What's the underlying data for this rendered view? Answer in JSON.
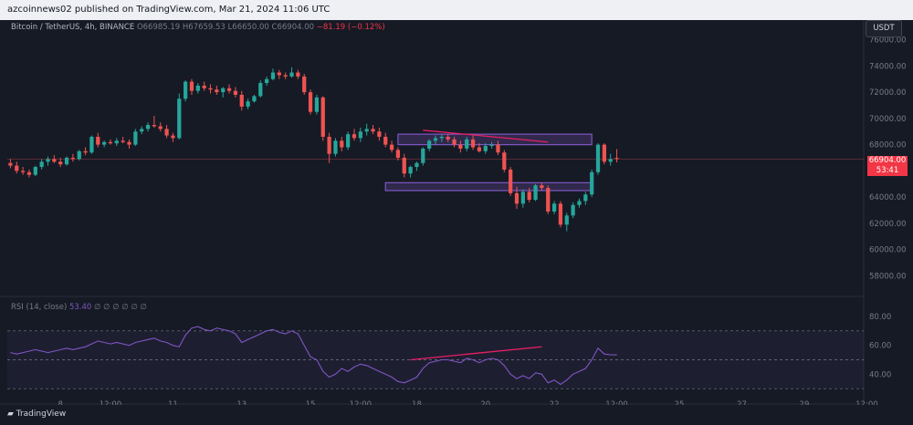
{
  "header": {
    "publish_text": "azcoinnews02 published on TradingView.com, Mar 21, 2024 11:06 UTC"
  },
  "legend": {
    "symbol": "Bitcoin / TetherUS, 4h, BINANCE",
    "open": "O66985.19",
    "high": "H67659.53",
    "low": "L66650.00",
    "close": "C66904.00",
    "change": "−81.19 (−0.12%)"
  },
  "rsi_legend": {
    "label": "RSI (14, close)",
    "value": "53.40",
    "extra": "∅ ∅ ∅ ∅ ∅ ∅"
  },
  "currency": "USDT",
  "price_tag": {
    "price": "66904.00",
    "countdown": "53:41"
  },
  "footer": {
    "logo_text": "TradingView"
  },
  "colors": {
    "up": "#26a69a",
    "down": "#ef5350",
    "zone": "#7e57c2",
    "divergence": "#e91e63",
    "rsi": "#7e57c2",
    "background": "#161a25"
  },
  "chart_data": [
    {
      "type": "candlestick",
      "title": "Bitcoin / TetherUS, 4h, BINANCE",
      "y_ticks": [
        "76000.00",
        "74000.00",
        "72000.00",
        "70000.00",
        "68000.00",
        "66000.00",
        "64000.00",
        "62000.00",
        "60000.00",
        "58000.00"
      ],
      "ylim": [
        56500,
        77500
      ],
      "x_ticks": [
        "8",
        "12:00",
        "11",
        "13",
        "15",
        "12:00",
        "18",
        "20",
        "22",
        "12:00",
        "25",
        "27",
        "29",
        "12:00"
      ],
      "x_tick_bar_index": [
        8,
        16,
        26,
        37,
        48,
        56,
        65,
        76,
        87,
        97,
        107,
        117,
        127,
        137
      ],
      "bar_count": 137,
      "candles_ohlc": [
        [
          66600,
          66900,
          66200,
          66400
        ],
        [
          66400,
          66700,
          65800,
          66000
        ],
        [
          66000,
          66300,
          65700,
          65900
        ],
        [
          65900,
          66100,
          65500,
          65700
        ],
        [
          65700,
          66400,
          65600,
          66300
        ],
        [
          66300,
          66900,
          66100,
          66700
        ],
        [
          66700,
          67100,
          66400,
          66900
        ],
        [
          66900,
          67200,
          66600,
          66700
        ],
        [
          66700,
          67000,
          66300,
          66500
        ],
        [
          66500,
          67100,
          66400,
          67000
        ],
        [
          67000,
          67300,
          66700,
          66900
        ],
        [
          66900,
          67600,
          66800,
          67500
        ],
        [
          67500,
          67800,
          67200,
          67400
        ],
        [
          67400,
          68700,
          67300,
          68600
        ],
        [
          68600,
          68900,
          67800,
          68000
        ],
        [
          68000,
          68300,
          67800,
          68200
        ],
        [
          68200,
          68400,
          68000,
          68100
        ],
        [
          68100,
          68500,
          67900,
          68300
        ],
        [
          68300,
          68600,
          68100,
          68200
        ],
        [
          68200,
          68400,
          67700,
          68000
        ],
        [
          68000,
          69200,
          67900,
          69000
        ],
        [
          69000,
          69400,
          68800,
          69200
        ],
        [
          69200,
          69700,
          69000,
          69500
        ],
        [
          69500,
          70200,
          69300,
          69400
        ],
        [
          69400,
          69700,
          69000,
          69200
        ],
        [
          69200,
          69500,
          68500,
          68700
        ],
        [
          68700,
          68900,
          68200,
          68500
        ],
        [
          68500,
          71900,
          68400,
          71500
        ],
        [
          71500,
          72900,
          71300,
          72800
        ],
        [
          72800,
          73000,
          71800,
          72100
        ],
        [
          72100,
          72700,
          71900,
          72500
        ],
        [
          72500,
          72800,
          72100,
          72300
        ],
        [
          72300,
          72600,
          71900,
          72200
        ],
        [
          72200,
          72500,
          71800,
          72000
        ],
        [
          72000,
          72400,
          71600,
          72300
        ],
        [
          72300,
          72600,
          71900,
          72100
        ],
        [
          72100,
          72400,
          71600,
          71800
        ],
        [
          71800,
          72100,
          70600,
          70900
        ],
        [
          70900,
          71500,
          70700,
          71300
        ],
        [
          71300,
          71800,
          71200,
          71700
        ],
        [
          71700,
          72900,
          71600,
          72700
        ],
        [
          72700,
          73200,
          72500,
          73000
        ],
        [
          73000,
          73800,
          72900,
          73500
        ],
        [
          73500,
          73700,
          73000,
          73300
        ],
        [
          73300,
          73500,
          73000,
          73200
        ],
        [
          73200,
          73900,
          73100,
          73500
        ],
        [
          73500,
          73700,
          73000,
          73200
        ],
        [
          73200,
          73400,
          71800,
          72000
        ],
        [
          72000,
          72200,
          70300,
          70500
        ],
        [
          70500,
          71800,
          70300,
          71600
        ],
        [
          71600,
          71700,
          68300,
          68600
        ],
        [
          68600,
          68900,
          66600,
          67300
        ],
        [
          67300,
          68500,
          67100,
          68300
        ],
        [
          68300,
          68600,
          67500,
          67800
        ],
        [
          67800,
          69000,
          67600,
          68800
        ],
        [
          68800,
          69200,
          68300,
          68500
        ],
        [
          68500,
          69300,
          68200,
          69000
        ],
        [
          69000,
          69600,
          68700,
          69200
        ],
        [
          69200,
          69500,
          68800,
          69000
        ],
        [
          69000,
          69300,
          68300,
          68600
        ],
        [
          68600,
          68900,
          67800,
          68000
        ],
        [
          68000,
          68300,
          67400,
          67600
        ],
        [
          67600,
          67800,
          66800,
          67000
        ],
        [
          67000,
          67300,
          65500,
          65800
        ],
        [
          65800,
          66400,
          65500,
          66300
        ],
        [
          66300,
          66700,
          66000,
          66600
        ],
        [
          66600,
          67800,
          66400,
          67700
        ],
        [
          67700,
          68400,
          67500,
          68300
        ],
        [
          68300,
          68700,
          68000,
          68500
        ],
        [
          68500,
          68800,
          68200,
          68600
        ],
        [
          68600,
          68800,
          68200,
          68400
        ],
        [
          68400,
          68600,
          67800,
          68000
        ],
        [
          68000,
          68300,
          67400,
          67700
        ],
        [
          67700,
          68600,
          67500,
          68400
        ],
        [
          68400,
          68700,
          67600,
          67800
        ],
        [
          67800,
          68100,
          67400,
          67500
        ],
        [
          67500,
          68100,
          67300,
          67900
        ],
        [
          67900,
          68200,
          67700,
          68000
        ],
        [
          68000,
          68300,
          67200,
          67400
        ],
        [
          67400,
          67600,
          65900,
          66100
        ],
        [
          66100,
          66300,
          64100,
          64300
        ],
        [
          64300,
          64800,
          63100,
          63500
        ],
        [
          63500,
          64600,
          63200,
          64400
        ],
        [
          64400,
          64700,
          63600,
          63800
        ],
        [
          63800,
          65000,
          63700,
          64900
        ],
        [
          64900,
          65100,
          64500,
          64700
        ],
        [
          64700,
          64900,
          62700,
          62900
        ],
        [
          62900,
          63700,
          62700,
          63500
        ],
        [
          63500,
          63700,
          61700,
          61900
        ],
        [
          61900,
          62800,
          61400,
          62600
        ],
        [
          62600,
          63600,
          62400,
          63400
        ],
        [
          63400,
          63900,
          63200,
          63700
        ],
        [
          63700,
          64400,
          63400,
          64200
        ],
        [
          64200,
          66100,
          64000,
          65900
        ],
        [
          65900,
          68100,
          65700,
          68000
        ],
        [
          68000,
          68100,
          66500,
          66700
        ],
        [
          66700,
          67300,
          66400,
          66900
        ],
        [
          66985.19,
          67659.53,
          66650,
          66904
        ]
      ],
      "zones": [
        {
          "low": 68000,
          "high": 68800,
          "x_start_bar": 62,
          "x_end_bar": 93
        },
        {
          "low": 64500,
          "high": 65100,
          "x_start_bar": 60,
          "x_end_bar": 93
        }
      ],
      "resistance_line": {
        "x_start_bar": 66,
        "y_start": 69100,
        "x_end_bar": 86,
        "y_end": 68200
      },
      "last_price": 66904.0
    },
    {
      "type": "line",
      "title": "RSI (14, close)",
      "y_ticks": [
        "80.00",
        "60.00",
        "40.00"
      ],
      "ylim": [
        20,
        92
      ],
      "bands": [
        70,
        50,
        30
      ],
      "series": [
        {
          "values": [
            55,
            54,
            55,
            56,
            57,
            56,
            55,
            56,
            57,
            58,
            57,
            58,
            59,
            61,
            63,
            62,
            61,
            62,
            61,
            60,
            62,
            63,
            64,
            65,
            63,
            62,
            60,
            59,
            67,
            72,
            73,
            71,
            70,
            72,
            71,
            70,
            68,
            62,
            64,
            66,
            68,
            70,
            71,
            69,
            68,
            70,
            68,
            60,
            52,
            50,
            42,
            38,
            40,
            44,
            42,
            45,
            47,
            46,
            44,
            42,
            40,
            38,
            35,
            34,
            36,
            38,
            44,
            48,
            49,
            50,
            50,
            49,
            48,
            51,
            50,
            48,
            50,
            51,
            50,
            46,
            40,
            37,
            39,
            37,
            41,
            40,
            34,
            36,
            33,
            36,
            40,
            42,
            44,
            50,
            58,
            54,
            53.5,
            53.4
          ]
        }
      ],
      "divergence_line": {
        "x_start_bar": 64,
        "y_start": 50,
        "x_end_bar": 85,
        "y_end": 59
      }
    }
  ]
}
